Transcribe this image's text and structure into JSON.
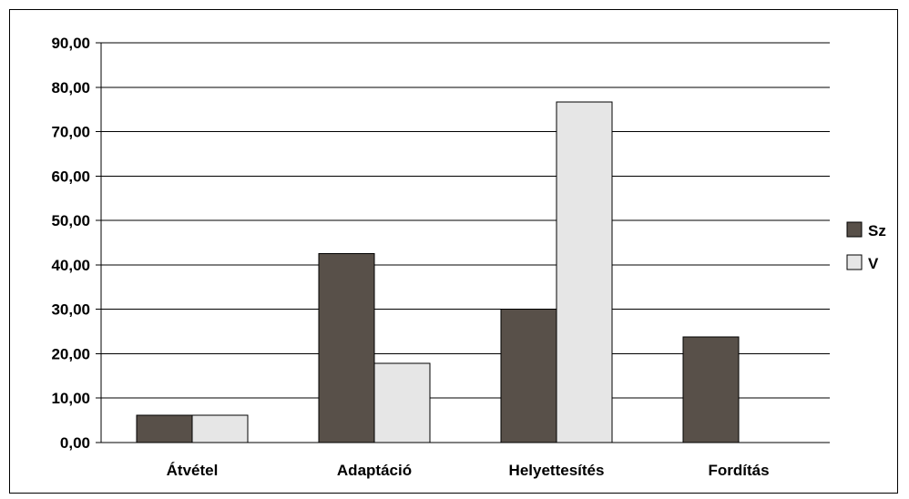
{
  "chart_data": {
    "type": "bar",
    "title": "",
    "xlabel": "",
    "ylabel": "",
    "categories": [
      "Átvétel",
      "Adaptáció",
      "Helyettesítés",
      "Fordítás"
    ],
    "series": [
      {
        "name": "Sz",
        "values": [
          6.2,
          42.5,
          30.0,
          23.8
        ],
        "color": "#585049"
      },
      {
        "name": "V",
        "values": [
          6.2,
          17.8,
          76.7,
          0.0
        ],
        "color": "#e6e6e6"
      }
    ],
    "ylim": [
      0,
      90
    ],
    "yticks": [
      "0,00",
      "10,00",
      "20,00",
      "30,00",
      "40,00",
      "50,00",
      "60,00",
      "70,00",
      "80,00",
      "90,00"
    ],
    "grid": true,
    "legend_position": "right"
  }
}
